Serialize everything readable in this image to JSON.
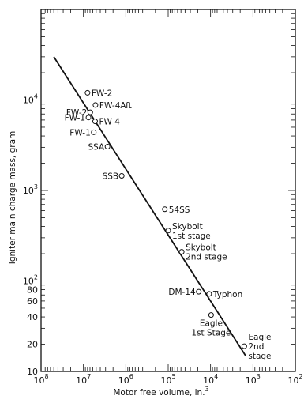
{
  "chart_data": {
    "type": "scatter",
    "xlabel_base": "Motor free volume, in.",
    "xlabel_exp": "3",
    "ylabel": "Igniter main charge mass, gram",
    "x_scale": "log",
    "y_scale": "log",
    "x_reversed": true,
    "xlim": [
      100000000,
      100
    ],
    "ylim": [
      10,
      100000
    ],
    "grid": false,
    "x_ticks": [
      {
        "value": 100000000,
        "base": "10",
        "exp": "8"
      },
      {
        "value": 10000000,
        "base": "10",
        "exp": "7"
      },
      {
        "value": 1000000,
        "base": "10",
        "exp": "6"
      },
      {
        "value": 100000,
        "base": "10",
        "exp": "5"
      },
      {
        "value": 10000,
        "base": "10",
        "exp": "4"
      },
      {
        "value": 1000,
        "base": "10",
        "exp": "3"
      },
      {
        "value": 100,
        "base": "10",
        "exp": "2"
      }
    ],
    "y_ticks": [
      {
        "value": 10,
        "base": "10",
        "exp": ""
      },
      {
        "value": 20,
        "base": "20",
        "exp": ""
      },
      {
        "value": 40,
        "base": "40",
        "exp": ""
      },
      {
        "value": 60,
        "base": "60",
        "exp": ""
      },
      {
        "value": 80,
        "base": "80",
        "exp": ""
      },
      {
        "value": 100,
        "base": "10",
        "exp": "2"
      },
      {
        "value": 1000,
        "base": "10",
        "exp": "3"
      },
      {
        "value": 10000,
        "base": "10",
        "exp": "4"
      }
    ],
    "points": [
      {
        "label": [
          "FW-2"
        ],
        "x": 8000000,
        "y": 12000,
        "label_side": "right"
      },
      {
        "label": [
          "FW-4Aft"
        ],
        "x": 5200000,
        "y": 8800,
        "label_side": "right"
      },
      {
        "label": [
          "FW-2"
        ],
        "x": 6900000,
        "y": 7300,
        "label_side": "left"
      },
      {
        "label": [
          "FW-1"
        ],
        "x": 7600000,
        "y": 6400,
        "label_side": "left"
      },
      {
        "label": [
          "FW-4"
        ],
        "x": 5300000,
        "y": 5800,
        "label_side": "right"
      },
      {
        "label": [
          "FW-1"
        ],
        "x": 5700000,
        "y": 4400,
        "label_side": "left"
      },
      {
        "label": [
          "SSA"
        ],
        "x": 2700000,
        "y": 3050,
        "label_side": "left"
      },
      {
        "label": [
          "SSB"
        ],
        "x": 1250000,
        "y": 1450,
        "label_side": "left"
      },
      {
        "label": [
          "54SS"
        ],
        "x": 120000,
        "y": 620,
        "label_side": "right"
      },
      {
        "label": [
          "Skybolt",
          "1st stage"
        ],
        "x": 100000,
        "y": 360,
        "label_side": "right"
      },
      {
        "label": [
          "Skybolt",
          "2nd stage"
        ],
        "x": 48000,
        "y": 210,
        "label_side": "right"
      },
      {
        "label": [
          "DM-14"
        ],
        "x": 19000,
        "y": 76,
        "label_side": "left"
      },
      {
        "label": [
          "Typhon"
        ],
        "x": 10800,
        "y": 72,
        "label_side": "right"
      },
      {
        "label": [
          "Eagle",
          "1st Stage"
        ],
        "x": 9700,
        "y": 42,
        "label_side": "below"
      },
      {
        "label": [
          "Eagle",
          "2nd",
          "stage"
        ],
        "x": 1600,
        "y": 19,
        "label_side": "right"
      }
    ],
    "fit_line": {
      "x": [
        50000000,
        1500
      ],
      "y": [
        30000,
        15
      ]
    }
  }
}
